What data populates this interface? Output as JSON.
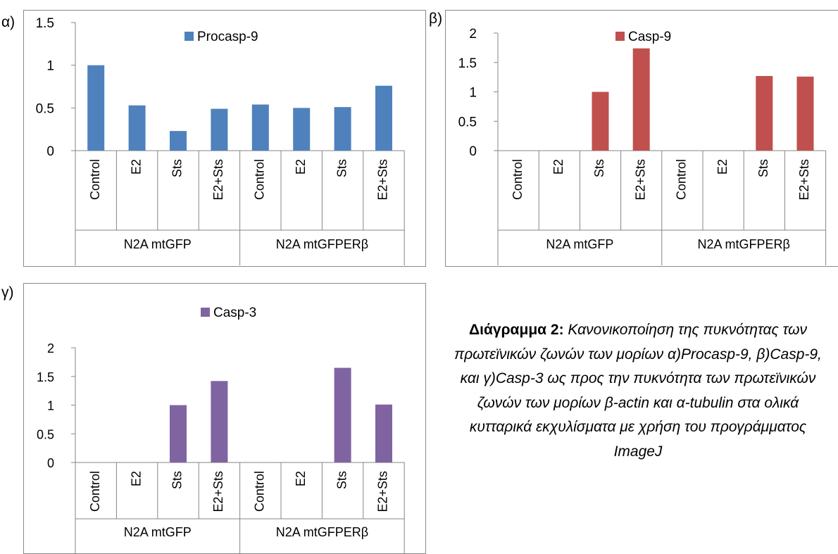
{
  "panels": [
    {
      "label": "α)"
    },
    {
      "label": "β)"
    },
    {
      "label": "γ)"
    }
  ],
  "caption": {
    "heading": "Διάγραμμα 2:",
    "text": " Κανονικοποίηση της πυκνότητας των πρωτεϊνικών ζωνών των μορίων α)Procasp-9, β)Casp-9, και γ)Casp-3 ως προς την πυκνότητα των πρωτεϊνικών ζωνών των μορίων β-actin και α-tubulin στα ολικά κυτταρικά εκχυλίσματα με χρήση του προγράμματος ImageJ"
  },
  "chart_data": [
    {
      "type": "bar",
      "categories": [
        "Control",
        "E2",
        "Sts",
        "E2+Sts",
        "Control",
        "E2",
        "Sts",
        "E2+Sts"
      ],
      "groups": [
        "N2A mtGFP",
        "N2A mtGFPERβ"
      ],
      "series": [
        {
          "name": "Procasp-9",
          "color": "#4f81bd",
          "values": [
            1.0,
            0.53,
            0.23,
            0.49,
            0.54,
            0.5,
            0.51,
            0.76
          ]
        }
      ],
      "yticks": [
        "0",
        "0.5",
        "1",
        "1.5"
      ],
      "ylim": [
        0,
        1.5
      ],
      "legend": "top-center"
    },
    {
      "type": "bar",
      "categories": [
        "Control",
        "E2",
        "Sts",
        "E2+Sts",
        "Control",
        "E2",
        "Sts",
        "E2+Sts"
      ],
      "groups": [
        "N2A mtGFP",
        "N2A mtGFPERβ"
      ],
      "series": [
        {
          "name": "Casp-9",
          "color": "#c0504d",
          "values": [
            0,
            0,
            1.0,
            1.74,
            0,
            0,
            1.27,
            1.26
          ]
        }
      ],
      "yticks": [
        "0",
        "0.5",
        "1",
        "1.5",
        "2"
      ],
      "ylim": [
        0,
        2
      ],
      "legend": "top-center"
    },
    {
      "type": "bar",
      "categories": [
        "Control",
        "E2",
        "Sts",
        "E2+Sts",
        "Control",
        "E2",
        "Sts",
        "E2+Sts"
      ],
      "groups": [
        "N2A mtGFP",
        "N2A mtGFPERβ"
      ],
      "series": [
        {
          "name": "Casp-3",
          "color": "#8064a2",
          "values": [
            0,
            0,
            1.0,
            1.42,
            0,
            0,
            1.65,
            1.01
          ]
        }
      ],
      "yticks": [
        "0",
        "0.5",
        "1",
        "1.5",
        "2"
      ],
      "ylim": [
        0,
        2
      ],
      "legend": "top-center"
    }
  ]
}
